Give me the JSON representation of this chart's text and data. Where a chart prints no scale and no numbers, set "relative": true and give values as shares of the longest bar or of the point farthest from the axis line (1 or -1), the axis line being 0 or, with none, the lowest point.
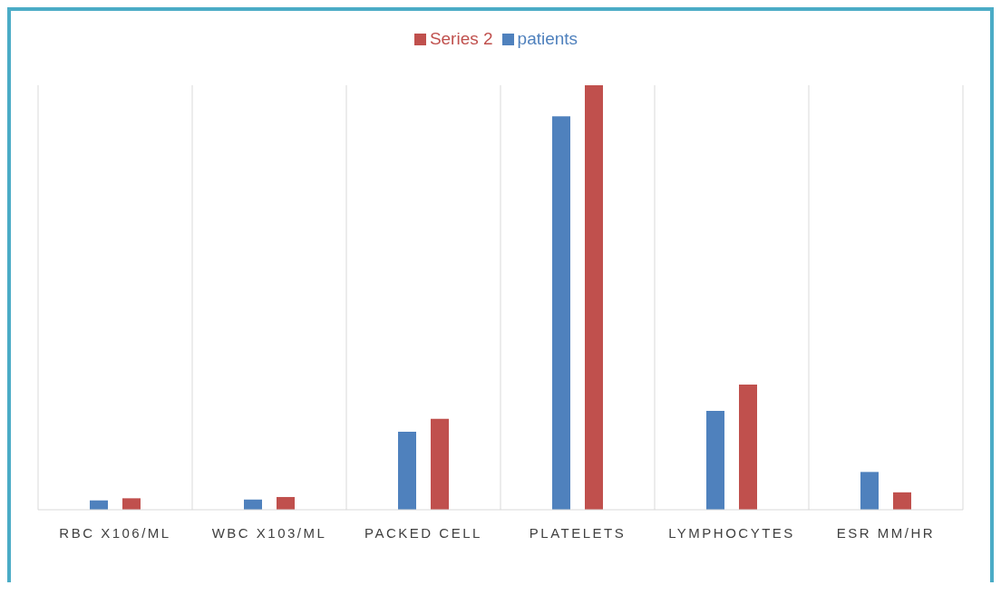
{
  "chart_data": {
    "type": "bar",
    "relative": true,
    "categories": [
      "RBC X106/ML",
      "WBC X103/ML",
      "PACKED CELL",
      "PLATELETS",
      "LYMPHOCYTES",
      "ESR MM/HR"
    ],
    "series": [
      {
        "name": "patients",
        "color": "#4f81bd",
        "values": [
          0.022,
          0.024,
          0.184,
          0.927,
          0.233,
          0.089
        ]
      },
      {
        "name": "Series 2",
        "color": "#c0504d",
        "values": [
          0.027,
          0.03,
          0.214,
          1,
          0.295,
          0.041
        ]
      }
    ],
    "grid": "x",
    "legend": "top"
  }
}
